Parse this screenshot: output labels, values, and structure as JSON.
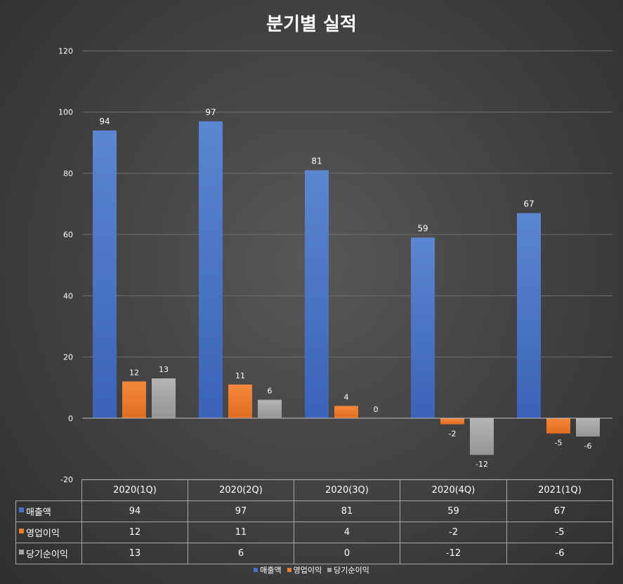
{
  "chart_data": {
    "type": "bar",
    "title": "분기별 실적",
    "categories": [
      "2020(1Q)",
      "2020(2Q)",
      "2020(3Q)",
      "2020(4Q)",
      "2021(1Q)"
    ],
    "series": [
      {
        "name": "매출액",
        "values": [
          94,
          97,
          81,
          59,
          67
        ],
        "color": "#4472c4"
      },
      {
        "name": "영업이익",
        "values": [
          12,
          11,
          4,
          -2,
          -5
        ],
        "color": "#ed7d31"
      },
      {
        "name": "당기순이익",
        "values": [
          13,
          6,
          0,
          -12,
          -6
        ],
        "color": "#a5a5a5"
      }
    ],
    "ylim": [
      -20,
      120
    ],
    "yticks": [
      "120",
      "100",
      "80",
      "60",
      "40",
      "20",
      "0",
      "-20"
    ],
    "grid": true,
    "data_table": true,
    "legend_position": "bottom"
  }
}
